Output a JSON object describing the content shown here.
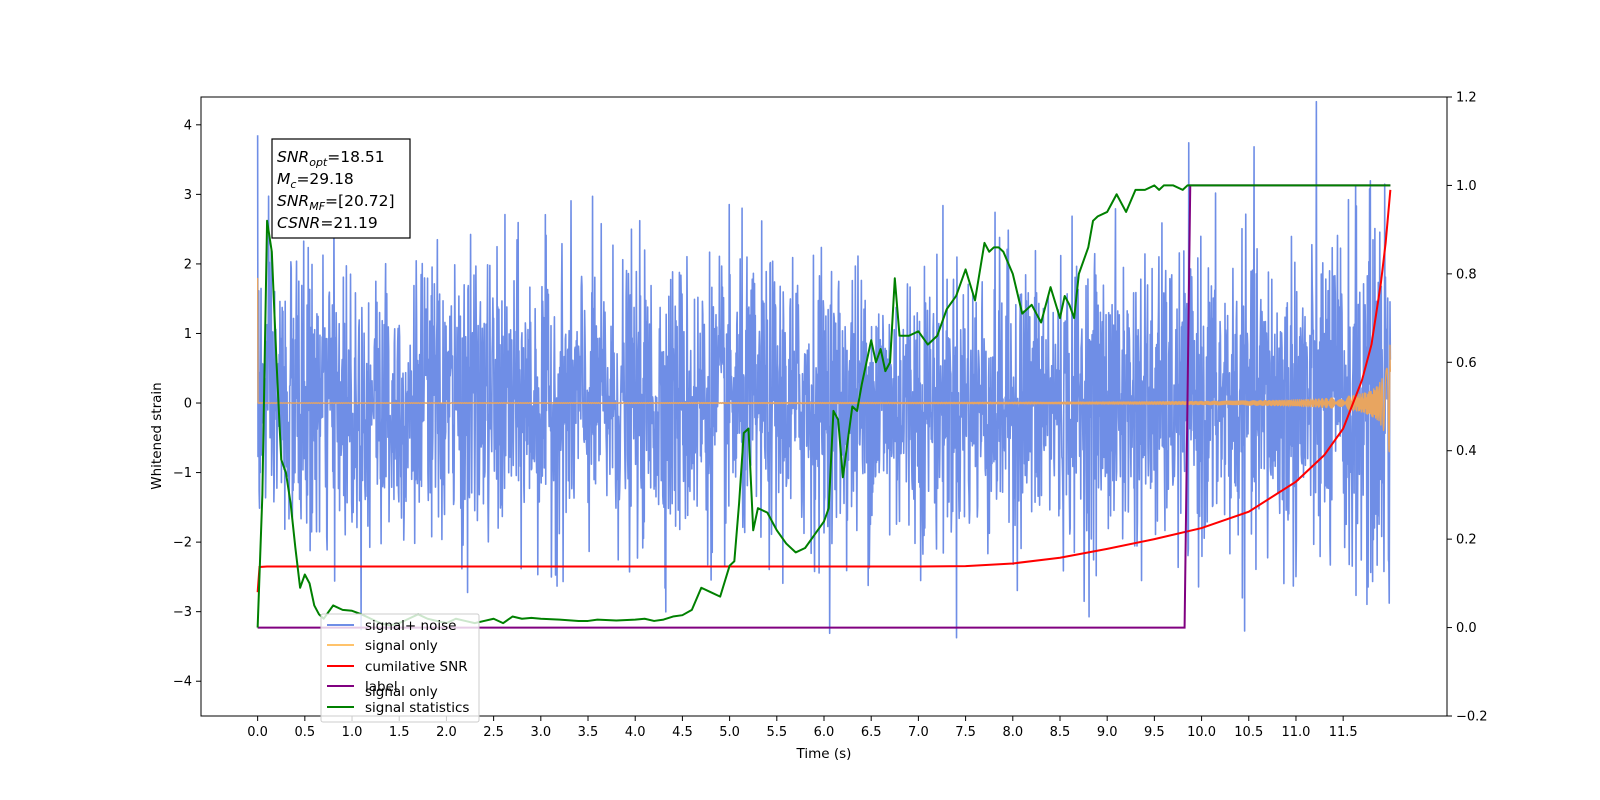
{
  "chart_data": {
    "type": "line",
    "xlabel": "Time (s)",
    "ylabel": "Whitened strain",
    "xlim": [
      -0.6,
      12.6
    ],
    "ylim_left": [
      -4.5,
      4.4
    ],
    "ylim_right": [
      -0.2,
      1.2
    ],
    "x_ticks": [
      "0.0",
      "0.5",
      "1.0",
      "1.5",
      "2.0",
      "2.5",
      "3.0",
      "3.5",
      "4.0",
      "4.5",
      "5.0",
      "5.5",
      "6.0",
      "6.5",
      "7.0",
      "7.5",
      "8.0",
      "8.5",
      "9.0",
      "9.5",
      "10.0",
      "10.5",
      "11.0",
      "11.5"
    ],
    "y_ticks_left": [
      "4",
      "3",
      "2",
      "1",
      "0",
      "−1",
      "−2",
      "−3",
      "−4"
    ],
    "y_ticks_right": [
      "1.2",
      "1.0",
      "0.8",
      "0.6",
      "0.4",
      "0.2",
      "0.0",
      "−0.2"
    ],
    "annotation": {
      "lines": [
        {
          "base": "SNR",
          "sub": "opt",
          "value": "=18.51"
        },
        {
          "base": "M",
          "sub": "c",
          "value": "=29.18"
        },
        {
          "base": "SNR",
          "sub": "MF",
          "value": "=[20.72]"
        },
        {
          "base": "CSNR",
          "sub": "",
          "value": "=21.19"
        }
      ]
    },
    "legend": {
      "placement": "lower-left",
      "entries": [
        {
          "label": "signal+ noise",
          "color": "#6f8ee6"
        },
        {
          "label": "signal only",
          "color": "#ffc36b"
        },
        {
          "label": "cumilative SNR",
          "color": "#ff0000"
        },
        {
          "label": "label",
          "color": "#800080"
        },
        {
          "label": "signal statistics",
          "color": "#008000"
        }
      ],
      "hidden_text": "signal only"
    },
    "series": [
      {
        "name": "signal+ noise",
        "axis": "left",
        "color": "#6f8ee6",
        "sampling": {
          "t_start": 0.0,
          "t_end": 12.0,
          "samples": 3000
        },
        "noise_envelope": [
          [
            0.0,
            1.0
          ],
          [
            8.0,
            1.0
          ],
          [
            10.0,
            1.05
          ],
          [
            11.0,
            1.15
          ],
          [
            11.7,
            1.3
          ],
          [
            12.0,
            1.45
          ]
        ],
        "noise_scale": 1.0
      },
      {
        "name": "signal only",
        "axis": "left",
        "color": "#e8a560",
        "chirp": {
          "t_coalescence": 12.05,
          "amp_start": 0.004,
          "amp_end": 2.3,
          "freq_start_hz": 20,
          "freq_end_hz": 200
        },
        "initial_spike": 1.8
      },
      {
        "name": "cumilative SNR",
        "axis": "right",
        "color": "#ff0000",
        "x": [
          0.0,
          0.02,
          0.1,
          1.0,
          3.0,
          5.0,
          6.0,
          7.0,
          7.5,
          8.0,
          8.5,
          9.0,
          9.5,
          10.0,
          10.5,
          11.0,
          11.3,
          11.5,
          11.7,
          11.8,
          11.9,
          11.95,
          12.0
        ],
        "y": [
          0.08,
          0.137,
          0.138,
          0.138,
          0.138,
          0.138,
          0.138,
          0.138,
          0.139,
          0.145,
          0.158,
          0.178,
          0.2,
          0.225,
          0.262,
          0.33,
          0.39,
          0.45,
          0.56,
          0.64,
          0.78,
          0.87,
          0.99
        ]
      },
      {
        "name": "label",
        "axis": "right",
        "color": "#800080",
        "x": [
          0.0,
          9.82,
          9.88,
          12.0
        ],
        "y": [
          0.0,
          0.0,
          1.0,
          1.0
        ]
      },
      {
        "name": "signal statistics",
        "axis": "right",
        "color": "#008000",
        "x": [
          0.0,
          0.05,
          0.1,
          0.15,
          0.2,
          0.25,
          0.3,
          0.35,
          0.4,
          0.45,
          0.5,
          0.55,
          0.6,
          0.65,
          0.7,
          0.8,
          0.9,
          1.0,
          1.1,
          1.2,
          1.3,
          1.4,
          1.5,
          1.6,
          1.7,
          1.8,
          1.9,
          2.0,
          2.1,
          2.2,
          2.3,
          2.4,
          2.5,
          2.6,
          2.7,
          2.8,
          2.9,
          3.0,
          3.2,
          3.4,
          3.5,
          3.6,
          3.8,
          4.0,
          4.1,
          4.2,
          4.3,
          4.4,
          4.5,
          4.6,
          4.7,
          4.8,
          4.9,
          5.0,
          5.05,
          5.1,
          5.15,
          5.2,
          5.25,
          5.3,
          5.4,
          5.5,
          5.6,
          5.7,
          5.8,
          5.9,
          6.0,
          6.05,
          6.1,
          6.15,
          6.2,
          6.25,
          6.3,
          6.35,
          6.4,
          6.5,
          6.55,
          6.6,
          6.65,
          6.7,
          6.75,
          6.8,
          6.85,
          6.9,
          7.0,
          7.1,
          7.2,
          7.3,
          7.4,
          7.5,
          7.6,
          7.7,
          7.75,
          7.8,
          7.85,
          7.9,
          8.0,
          8.1,
          8.2,
          8.3,
          8.4,
          8.5,
          8.55,
          8.6,
          8.65,
          8.7,
          8.8,
          8.85,
          8.9,
          9.0,
          9.05,
          9.1,
          9.2,
          9.3,
          9.4,
          9.5,
          9.55,
          9.6,
          9.7,
          9.8,
          9.85,
          9.9,
          10.0,
          10.1,
          10.2,
          10.3,
          10.5,
          10.8,
          11.0,
          11.5,
          12.0
        ],
        "y": [
          0.0,
          0.3,
          0.92,
          0.85,
          0.6,
          0.38,
          0.35,
          0.28,
          0.18,
          0.09,
          0.12,
          0.1,
          0.05,
          0.03,
          0.02,
          0.05,
          0.04,
          0.038,
          0.03,
          0.02,
          0.01,
          0.005,
          0.01,
          0.02,
          0.03,
          0.02,
          0.015,
          0.01,
          0.02,
          0.015,
          0.01,
          0.015,
          0.02,
          0.01,
          0.025,
          0.02,
          0.022,
          0.02,
          0.018,
          0.015,
          0.015,
          0.018,
          0.016,
          0.018,
          0.02,
          0.015,
          0.018,
          0.025,
          0.028,
          0.04,
          0.09,
          0.08,
          0.07,
          0.14,
          0.15,
          0.28,
          0.44,
          0.45,
          0.22,
          0.27,
          0.26,
          0.22,
          0.19,
          0.17,
          0.18,
          0.21,
          0.24,
          0.27,
          0.49,
          0.47,
          0.34,
          0.42,
          0.5,
          0.49,
          0.55,
          0.65,
          0.6,
          0.63,
          0.58,
          0.6,
          0.79,
          0.66,
          0.66,
          0.66,
          0.67,
          0.64,
          0.66,
          0.72,
          0.75,
          0.81,
          0.74,
          0.87,
          0.85,
          0.86,
          0.86,
          0.85,
          0.8,
          0.71,
          0.73,
          0.69,
          0.77,
          0.7,
          0.75,
          0.73,
          0.7,
          0.8,
          0.86,
          0.92,
          0.93,
          0.94,
          0.96,
          0.98,
          0.94,
          0.99,
          0.99,
          1.0,
          0.99,
          1.0,
          1.0,
          0.99,
          1.0,
          1.0,
          1.0,
          1.0,
          1.0,
          1.0,
          1.0,
          1.0,
          1.0,
          1.0,
          1.0
        ]
      }
    ]
  }
}
